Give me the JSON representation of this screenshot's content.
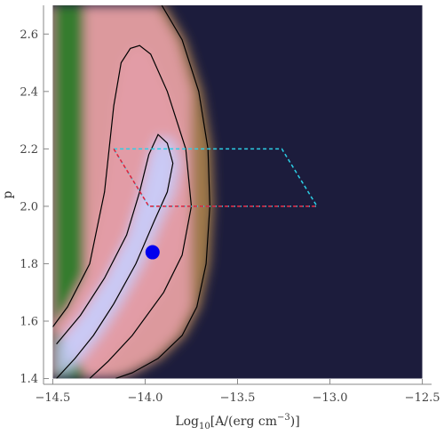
{
  "chart_data": {
    "type": "heatmap",
    "title": "",
    "xlabel_parts": {
      "pre": "Log",
      "sub": "10",
      "mid": "[A/(erg cm",
      "sup": "−3",
      "post": ")]"
    },
    "ylabel": "p",
    "xlim": [
      -14.55,
      -12.45
    ],
    "ylim": [
      1.38,
      2.7
    ],
    "x_ticks": [
      {
        "value": -14.5,
        "label": "−14.5"
      },
      {
        "value": -14.0,
        "label": "−14.0"
      },
      {
        "value": -13.5,
        "label": "−13.5"
      },
      {
        "value": -13.0,
        "label": "−13.0"
      },
      {
        "value": -12.5,
        "label": "−12.5"
      }
    ],
    "y_ticks": [
      {
        "value": 1.4,
        "label": "1.4"
      },
      {
        "value": 1.6,
        "label": "1.6"
      },
      {
        "value": 1.8,
        "label": "1.8"
      },
      {
        "value": 2.0,
        "label": "2.0"
      },
      {
        "value": 2.2,
        "label": "2.2"
      },
      {
        "value": 2.4,
        "label": "2.4"
      },
      {
        "value": 2.6,
        "label": "2.6"
      }
    ],
    "heatmap_extent": {
      "x": [
        -14.5,
        -12.5
      ],
      "y": [
        1.4,
        2.7
      ]
    },
    "colors": {
      "background": "#1c1c3c",
      "peak": "#c8ccfa",
      "pink": "#e29ca6",
      "brown": "#9e7848",
      "green": "#2c7a28"
    },
    "contours": [
      {
        "name": "outer",
        "points": [
          [
            -13.91,
            2.7
          ],
          [
            -13.8,
            2.58
          ],
          [
            -13.71,
            2.4
          ],
          [
            -13.66,
            2.2
          ],
          [
            -13.65,
            2.0
          ],
          [
            -13.67,
            1.8
          ],
          [
            -13.72,
            1.65
          ],
          [
            -13.8,
            1.55
          ],
          [
            -13.93,
            1.47
          ],
          [
            -14.07,
            1.42
          ],
          [
            -14.16,
            1.4
          ]
        ]
      },
      {
        "name": "middle",
        "points": [
          [
            -14.3,
            1.4
          ],
          [
            -14.2,
            1.46
          ],
          [
            -14.07,
            1.55
          ],
          [
            -13.9,
            1.7
          ],
          [
            -13.8,
            1.83
          ],
          [
            -13.75,
            2.0
          ],
          [
            -13.78,
            2.2
          ],
          [
            -13.88,
            2.4
          ],
          [
            -13.97,
            2.53
          ],
          [
            -14.03,
            2.56
          ],
          [
            -14.08,
            2.55
          ],
          [
            -14.13,
            2.5
          ],
          [
            -14.17,
            2.35
          ],
          [
            -14.22,
            2.05
          ],
          [
            -14.3,
            1.8
          ],
          [
            -14.42,
            1.65
          ],
          [
            -14.5,
            1.58
          ]
        ]
      },
      {
        "name": "inner",
        "points": [
          [
            -14.48,
            1.4
          ],
          [
            -14.38,
            1.47
          ],
          [
            -14.28,
            1.55
          ],
          [
            -14.17,
            1.66
          ],
          [
            -14.05,
            1.8
          ],
          [
            -13.95,
            1.95
          ],
          [
            -13.88,
            2.05
          ],
          [
            -13.85,
            2.15
          ],
          [
            -13.88,
            2.22
          ],
          [
            -13.93,
            2.25
          ],
          [
            -13.98,
            2.18
          ],
          [
            -14.03,
            2.05
          ],
          [
            -14.1,
            1.9
          ],
          [
            -14.22,
            1.75
          ],
          [
            -14.35,
            1.62
          ],
          [
            -14.48,
            1.52
          ]
        ]
      }
    ],
    "best_fit_point": {
      "x": -13.96,
      "y": 1.84,
      "color": "#0000ee"
    },
    "dashed_regions": [
      {
        "name": "cyan-region",
        "color": "#2ccfe6",
        "points": [
          [
            -14.17,
            2.2
          ],
          [
            -13.26,
            2.2
          ],
          [
            -13.07,
            2.0
          ],
          [
            -13.98,
            2.0
          ],
          [
            -14.17,
            2.2
          ]
        ]
      },
      {
        "name": "red-region",
        "color": "#e3203a",
        "points": [
          [
            -14.17,
            2.2
          ],
          [
            -13.98,
            2.0
          ],
          [
            -13.07,
            2.0
          ]
        ]
      }
    ]
  }
}
